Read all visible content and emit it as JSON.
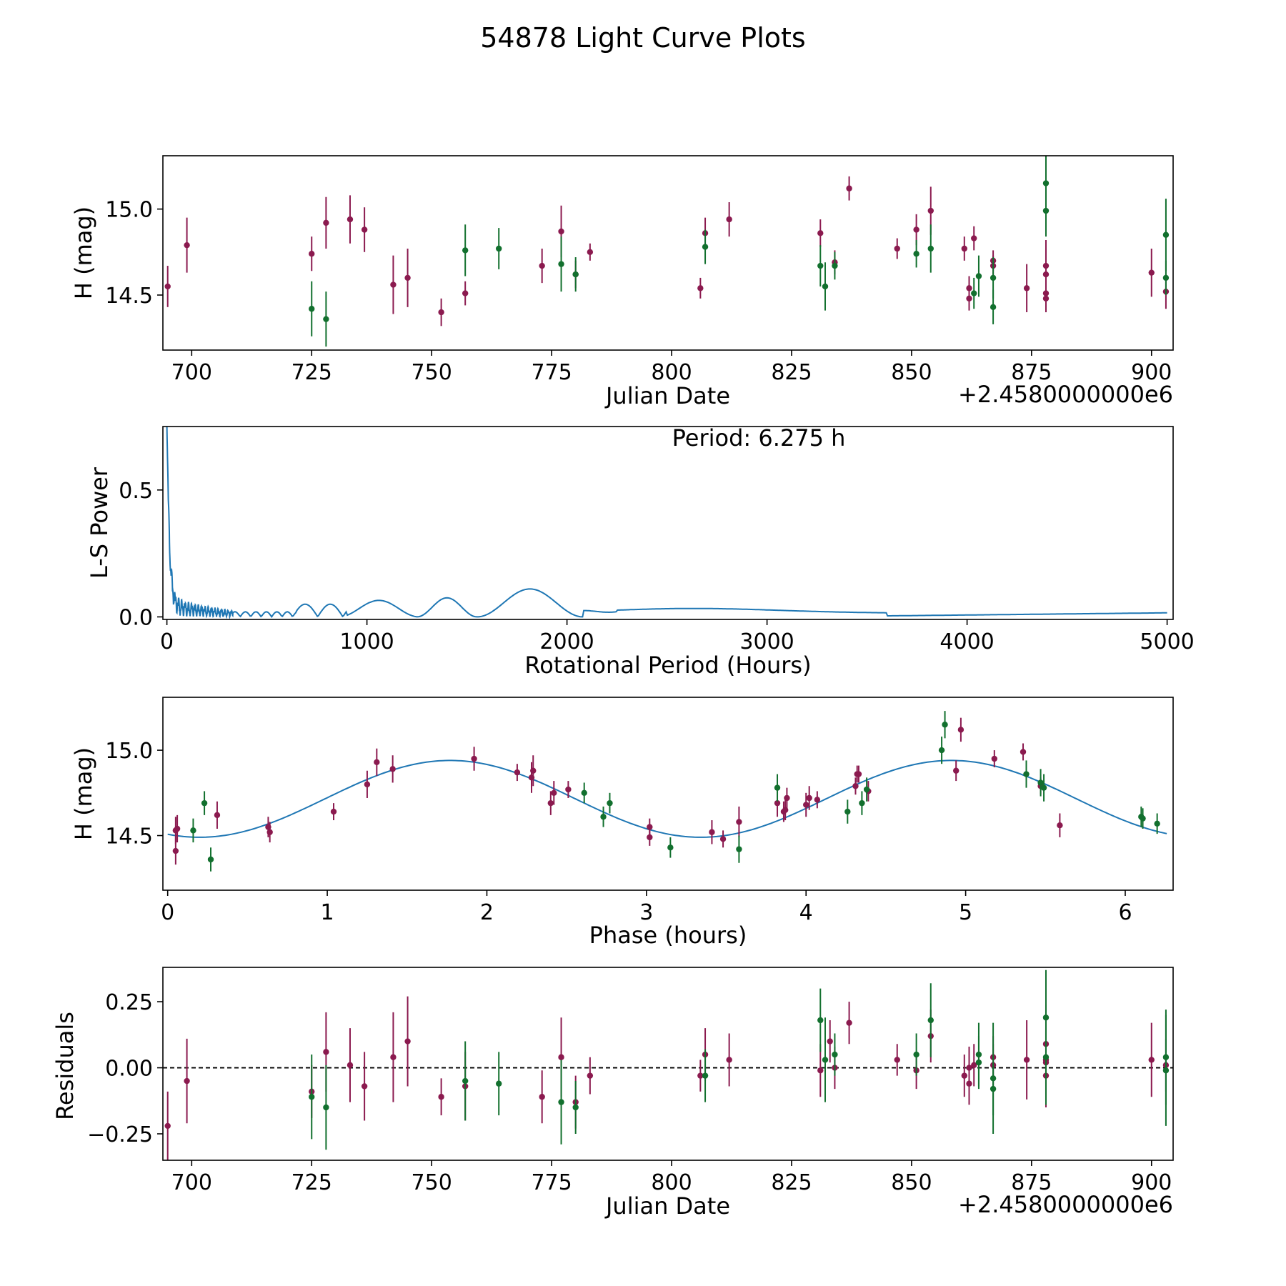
{
  "figure_title": "54878 Light Curve Plots",
  "colors": {
    "series_a": "#8b1a4f",
    "series_b": "#12702e",
    "line": "#1f77b4",
    "axis": "#000000"
  },
  "chart_data": [
    {
      "type": "scatter",
      "name": "light-curve",
      "xlabel": "Julian Date",
      "ylabel": "H (mag)",
      "offset_label": "+2.4580000000e6",
      "xlim": [
        694,
        904.5
      ],
      "ylim": [
        14.18,
        15.31
      ],
      "xticks": [
        700,
        725,
        750,
        775,
        800,
        825,
        850,
        875,
        900
      ],
      "xtick_labels": [
        "700",
        "725",
        "750",
        "775",
        "800",
        "825",
        "850",
        "875",
        "900"
      ],
      "yticks": [
        14.5,
        15.0
      ],
      "ytick_labels": [
        "14.5",
        "15.0"
      ],
      "series": [
        {
          "name": "band-a",
          "color": "#8b1a4f",
          "points": [
            [
              695,
              14.55,
              0.12
            ],
            [
              699,
              14.79,
              0.16
            ],
            [
              725,
              14.74,
              0.1
            ],
            [
              728,
              14.92,
              0.15
            ],
            [
              733,
              14.94,
              0.14
            ],
            [
              736,
              14.88,
              0.13
            ],
            [
              742,
              14.56,
              0.17
            ],
            [
              745,
              14.6,
              0.17
            ],
            [
              752,
              14.4,
              0.08
            ],
            [
              757,
              14.51,
              0.07
            ],
            [
              773,
              14.67,
              0.1
            ],
            [
              777,
              14.87,
              0.15
            ],
            [
              780,
              14.62,
              0.08
            ],
            [
              783,
              14.75,
              0.05
            ],
            [
              806,
              14.54,
              0.06
            ],
            [
              807,
              14.86,
              0.09
            ],
            [
              812,
              14.94,
              0.1
            ],
            [
              831,
              14.86,
              0.08
            ],
            [
              834,
              14.69,
              0.07
            ],
            [
              837,
              15.12,
              0.07
            ],
            [
              847,
              14.77,
              0.06
            ],
            [
              851,
              14.88,
              0.09
            ],
            [
              854,
              14.99,
              0.14
            ],
            [
              861,
              14.77,
              0.07
            ],
            [
              862,
              14.54,
              0.07
            ],
            [
              862,
              14.48,
              0.07
            ],
            [
              863,
              14.83,
              0.07
            ],
            [
              867,
              14.7,
              0.06
            ],
            [
              867,
              14.67,
              0.06
            ],
            [
              874,
              14.54,
              0.14
            ],
            [
              878,
              14.67,
              0.15
            ],
            [
              878,
              14.62,
              0.15
            ],
            [
              878,
              14.51,
              0.08
            ],
            [
              878,
              14.48,
              0.08
            ],
            [
              900,
              14.63,
              0.14
            ],
            [
              903,
              14.52,
              0.1
            ]
          ]
        },
        {
          "name": "band-b",
          "color": "#12702e",
          "points": [
            [
              725,
              14.42,
              0.16
            ],
            [
              728,
              14.36,
              0.16
            ],
            [
              757,
              14.76,
              0.15
            ],
            [
              764,
              14.77,
              0.12
            ],
            [
              777,
              14.68,
              0.16
            ],
            [
              780,
              14.62,
              0.1
            ],
            [
              807,
              14.78,
              0.1
            ],
            [
              831,
              14.67,
              0.12
            ],
            [
              832,
              14.55,
              0.14
            ],
            [
              834,
              14.67,
              0.08
            ],
            [
              851,
              14.74,
              0.08
            ],
            [
              854,
              14.77,
              0.14
            ],
            [
              863,
              14.51,
              0.09
            ],
            [
              864,
              14.61,
              0.12
            ],
            [
              867,
              14.6,
              0.12
            ],
            [
              867,
              14.43,
              0.1
            ],
            [
              878,
              15.15,
              0.18
            ],
            [
              878,
              14.99,
              0.15
            ],
            [
              903,
              14.85,
              0.21
            ],
            [
              903,
              14.6,
              0.1
            ]
          ]
        }
      ]
    },
    {
      "type": "line",
      "name": "periodogram",
      "xlabel": "Rotational Period (Hours)",
      "ylabel": "L-S Power",
      "annotation": "Period: 6.275 h",
      "xlim": [
        -20,
        5030
      ],
      "ylim": [
        -0.01,
        0.75
      ],
      "xticks": [
        0,
        1000,
        2000,
        3000,
        4000,
        5000
      ],
      "xtick_labels": [
        "0",
        "1000",
        "2000",
        "3000",
        "4000",
        "5000"
      ],
      "yticks": [
        0,
        0.5
      ],
      "ytick_labels": [
        "0.0",
        "0.5"
      ],
      "peak": {
        "x": 6.275,
        "y": 0.75
      }
    },
    {
      "type": "scatter",
      "name": "phase-folded",
      "xlabel": "Phase (hours)",
      "ylabel": "H (mag)",
      "xlim": [
        -0.03,
        6.3
      ],
      "ylim": [
        14.18,
        15.31
      ],
      "xticks": [
        0,
        1,
        2,
        3,
        4,
        5,
        6
      ],
      "xtick_labels": [
        "0",
        "1",
        "2",
        "3",
        "4",
        "5",
        "6"
      ],
      "yticks": [
        14.5,
        15.0
      ],
      "ytick_labels": [
        "14.5",
        "15.0"
      ],
      "model": {
        "mean": 14.715,
        "amplitude": 0.225,
        "period": 3.14,
        "peak_phase": 1.77,
        "x_range": [
          0,
          6.275
        ]
      },
      "series": [
        {
          "name": "band-a",
          "color": "#8b1a4f",
          "points": [
            [
              0.05,
              14.41,
              0.08
            ],
            [
              0.05,
              14.53,
              0.08
            ],
            [
              0.06,
              14.54,
              0.08
            ],
            [
              0.31,
              14.62,
              0.08
            ],
            [
              0.63,
              14.55,
              0.06
            ],
            [
              0.64,
              14.52,
              0.06
            ],
            [
              1.04,
              14.64,
              0.05
            ],
            [
              1.25,
              14.8,
              0.08
            ],
            [
              1.31,
              14.93,
              0.08
            ],
            [
              1.41,
              14.89,
              0.08
            ],
            [
              1.92,
              14.95,
              0.07
            ],
            [
              2.19,
              14.87,
              0.05
            ],
            [
              2.28,
              14.84,
              0.09
            ],
            [
              2.29,
              14.88,
              0.09
            ],
            [
              2.4,
              14.69,
              0.07
            ],
            [
              2.42,
              14.75,
              0.07
            ],
            [
              2.51,
              14.77,
              0.05
            ],
            [
              3.02,
              14.55,
              0.05
            ],
            [
              3.02,
              14.49,
              0.05
            ],
            [
              3.41,
              14.52,
              0.07
            ],
            [
              3.48,
              14.48,
              0.05
            ],
            [
              3.58,
              14.58,
              0.09
            ],
            [
              3.82,
              14.69,
              0.08
            ],
            [
              3.86,
              14.64,
              0.06
            ],
            [
              3.87,
              14.65,
              0.06
            ],
            [
              3.88,
              14.72,
              0.06
            ],
            [
              4.0,
              14.68,
              0.07
            ],
            [
              4.02,
              14.72,
              0.07
            ],
            [
              4.07,
              14.71,
              0.05
            ],
            [
              4.31,
              14.79,
              0.05
            ],
            [
              4.32,
              14.86,
              0.05
            ],
            [
              4.33,
              14.86,
              0.05
            ],
            [
              4.39,
              14.76,
              0.06
            ],
            [
              4.94,
              14.88,
              0.06
            ],
            [
              4.97,
              15.12,
              0.07
            ],
            [
              5.18,
              14.95,
              0.05
            ],
            [
              5.36,
              14.99,
              0.05
            ],
            [
              5.47,
              14.79,
              0.05
            ],
            [
              5.59,
              14.56,
              0.07
            ]
          ]
        },
        {
          "name": "band-b",
          "color": "#12702e",
          "points": [
            [
              0.16,
              14.53,
              0.07
            ],
            [
              0.23,
              14.69,
              0.07
            ],
            [
              0.27,
              14.36,
              0.07
            ],
            [
              2.61,
              14.75,
              0.06
            ],
            [
              2.73,
              14.61,
              0.06
            ],
            [
              2.77,
              14.69,
              0.06
            ],
            [
              3.15,
              14.43,
              0.06
            ],
            [
              3.58,
              14.42,
              0.08
            ],
            [
              3.82,
              14.78,
              0.08
            ],
            [
              4.26,
              14.64,
              0.07
            ],
            [
              4.35,
              14.69,
              0.07
            ],
            [
              4.38,
              14.77,
              0.07
            ],
            [
              4.85,
              15.0,
              0.08
            ],
            [
              4.87,
              15.15,
              0.08
            ],
            [
              5.38,
              14.86,
              0.08
            ],
            [
              5.47,
              14.81,
              0.08
            ],
            [
              5.49,
              14.78,
              0.08
            ],
            [
              6.1,
              14.61,
              0.06
            ],
            [
              6.11,
              14.6,
              0.06
            ],
            [
              6.2,
              14.57,
              0.06
            ]
          ]
        }
      ]
    },
    {
      "type": "scatter",
      "name": "residuals",
      "xlabel": "Julian Date",
      "ylabel": "Residuals",
      "offset_label": "+2.4580000000e6",
      "xlim": [
        694,
        904.5
      ],
      "ylim": [
        -0.35,
        0.38
      ],
      "xticks": [
        700,
        725,
        750,
        775,
        800,
        825,
        850,
        875,
        900
      ],
      "xtick_labels": [
        "700",
        "725",
        "750",
        "775",
        "800",
        "825",
        "850",
        "875",
        "900"
      ],
      "yticks": [
        -0.25,
        0,
        0.25
      ],
      "ytick_labels": [
        "−0.25",
        "0.00",
        "0.25"
      ],
      "zero_line": 0,
      "series": [
        {
          "name": "band-a",
          "color": "#8b1a4f",
          "points": [
            [
              695,
              -0.22,
              0.13
            ],
            [
              699,
              -0.05,
              0.16
            ],
            [
              725,
              -0.09,
              0.1
            ],
            [
              728,
              0.06,
              0.15
            ],
            [
              733,
              0.01,
              0.14
            ],
            [
              736,
              -0.07,
              0.13
            ],
            [
              742,
              0.04,
              0.17
            ],
            [
              745,
              0.1,
              0.17
            ],
            [
              752,
              -0.11,
              0.07
            ],
            [
              757,
              -0.07,
              0.13
            ],
            [
              773,
              -0.11,
              0.1
            ],
            [
              777,
              0.04,
              0.15
            ],
            [
              780,
              -0.13,
              0.1
            ],
            [
              783,
              -0.03,
              0.07
            ],
            [
              806,
              -0.03,
              0.06
            ],
            [
              807,
              0.05,
              0.1
            ],
            [
              812,
              0.03,
              0.1
            ],
            [
              831,
              -0.01,
              0.1
            ],
            [
              833,
              0.1,
              0.08
            ],
            [
              834,
              0.0,
              0.08
            ],
            [
              837,
              0.17,
              0.08
            ],
            [
              847,
              0.03,
              0.06
            ],
            [
              851,
              -0.01,
              0.07
            ],
            [
              854,
              0.12,
              0.1
            ],
            [
              861,
              -0.03,
              0.08
            ],
            [
              862,
              0.0,
              0.08
            ],
            [
              862,
              -0.06,
              0.08
            ],
            [
              863,
              0.01,
              0.08
            ],
            [
              867,
              0.04,
              0.08
            ],
            [
              867,
              0.01,
              0.08
            ],
            [
              874,
              0.03,
              0.15
            ],
            [
              878,
              0.09,
              0.15
            ],
            [
              878,
              0.02,
              0.12
            ],
            [
              878,
              0.03,
              0.12
            ],
            [
              878,
              -0.03,
              0.12
            ],
            [
              900,
              0.03,
              0.14
            ],
            [
              903,
              0.01,
              0.1
            ]
          ]
        },
        {
          "name": "band-b",
          "color": "#12702e",
          "points": [
            [
              725,
              -0.11,
              0.16
            ],
            [
              728,
              -0.15,
              0.16
            ],
            [
              757,
              -0.05,
              0.15
            ],
            [
              764,
              -0.06,
              0.12
            ],
            [
              777,
              -0.13,
              0.16
            ],
            [
              780,
              -0.15,
              0.1
            ],
            [
              807,
              -0.03,
              0.1
            ],
            [
              831,
              0.18,
              0.12
            ],
            [
              832,
              0.03,
              0.16
            ],
            [
              834,
              0.05,
              0.08
            ],
            [
              851,
              0.05,
              0.08
            ],
            [
              854,
              0.18,
              0.14
            ],
            [
              864,
              0.05,
              0.12
            ],
            [
              864,
              0.02,
              0.1
            ],
            [
              867,
              -0.04,
              0.21
            ],
            [
              867,
              -0.08,
              0.1
            ],
            [
              878,
              0.19,
              0.18
            ],
            [
              878,
              0.04,
              0.18
            ],
            [
              903,
              0.04,
              0.18
            ],
            [
              903,
              -0.01,
              0.21
            ]
          ]
        }
      ]
    }
  ]
}
